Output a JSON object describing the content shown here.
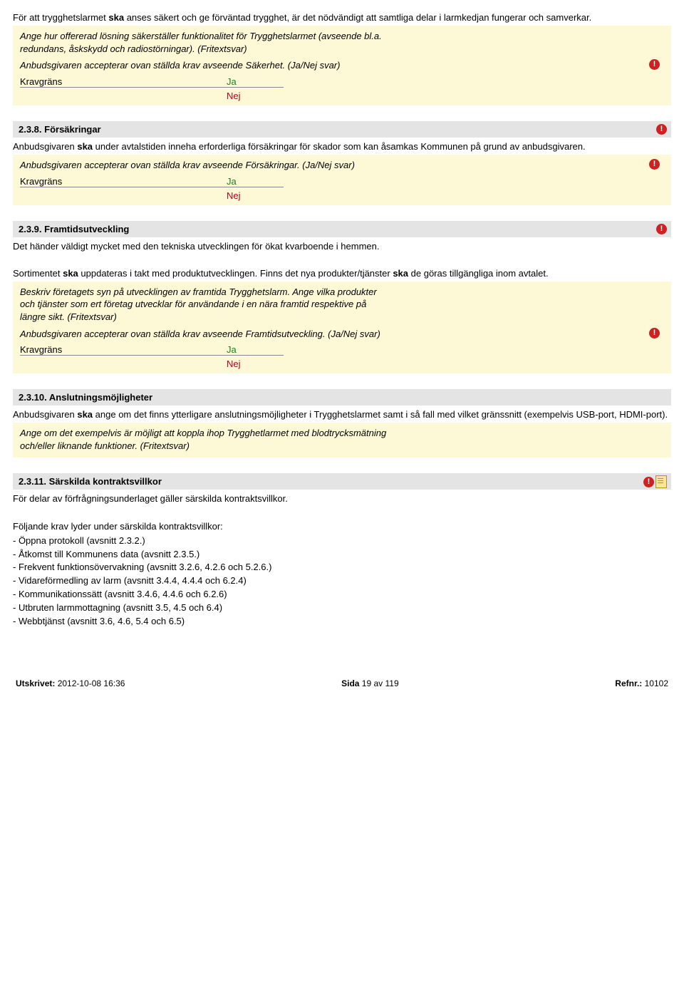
{
  "s1": {
    "intro": "För att trygghetslarmet ska anses säkert och ge förväntad trygghet, är det nödvändigt att samtliga delar i larmkedjan fungerar och samverkar.",
    "q1": "Ange hur offererad lösning säkerställer funktionalitet för Trygghetslarmet (avseende bl.a. redundans, åskskydd och radiostörningar). (Fritextsvar)",
    "q2": "Anbudsgivaren accepterar ovan ställda krav avseende Säkerhet. (Ja/Nej svar)",
    "krav": "Kravgräns",
    "ja": "Ja",
    "nej": "Nej"
  },
  "s2": {
    "title": "2.3.8. Försäkringar",
    "intro": "Anbudsgivaren ska under avtalstiden inneha erforderliga försäkringar för skador som kan åsamkas Kommunen på grund av anbudsgivaren.",
    "q1": "Anbudsgivaren accepterar ovan ställda krav avseende Försäkringar. (Ja/Nej svar)",
    "krav": "Kravgräns",
    "ja": "Ja",
    "nej": "Nej"
  },
  "s3": {
    "title": "2.3.9. Framtidsutveckling",
    "intro1": "Det händer väldigt mycket med den tekniska utvecklingen för ökat kvarboende i hemmen.",
    "intro2": "Sortimentet ska uppdateras i takt med produktutvecklingen. Finns det nya produkter/tjänster ska de göras tillgängliga inom avtalet.",
    "q1": "Beskriv företagets syn på utvecklingen av framtida Trygghetslarm. Ange vilka produkter och tjänster som ert företag utvecklar för användande i en nära framtid respektive på längre sikt. (Fritextsvar)",
    "q2": "Anbudsgivaren accepterar ovan ställda krav avseende Framtidsutveckling. (Ja/Nej svar)",
    "krav": "Kravgräns",
    "ja": "Ja",
    "nej": "Nej"
  },
  "s4": {
    "title": "2.3.10. Anslutningsmöjligheter",
    "intro": "Anbudsgivaren ska ange om det finns ytterligare anslutningsmöjligheter i Trygghetslarmet samt i så fall med vilket gränssnitt (exempelvis USB-port, HDMI-port).",
    "q1": "Ange om det exempelvis är möjligt att koppla ihop Trygghetlarmet med blodtrycksmätning och/eller liknande funktioner. (Fritextsvar)"
  },
  "s5": {
    "title": "2.3.11. Särskilda kontraktsvillkor",
    "intro": "För delar av förfrågningsunderlaget gäller särskilda kontraktsvillkor.",
    "lead": "Följande krav lyder under särskilda kontraktsvillkor:",
    "items": [
      "- Öppna protokoll (avsnitt 2.3.2.)",
      "- Åtkomst till Kommunens data (avsnitt 2.3.5.)",
      "- Frekvent funktionsövervakning (avsnitt 3.2.6, 4.2.6 och 5.2.6.)",
      "- Vidareförmedling av larm (avsnitt 3.4.4, 4.4.4 och 6.2.4)",
      "- Kommunikationssätt (avsnitt 3.4.6, 4.4.6 och 6.2.6)",
      "- Utbruten larmmottagning (avsnitt 3.5, 4.5 och 6.4)",
      "- Webbtjänst (avsnitt 3.6, 4.6, 5.4 och 6.5)"
    ]
  },
  "footer": {
    "left_label": "Utskrivet:",
    "left_value": " 2012-10-08 16:36",
    "center_label": "Sida ",
    "center_value": "19 av 119",
    "right_label": "Refnr.:",
    "right_value": " 10102"
  }
}
